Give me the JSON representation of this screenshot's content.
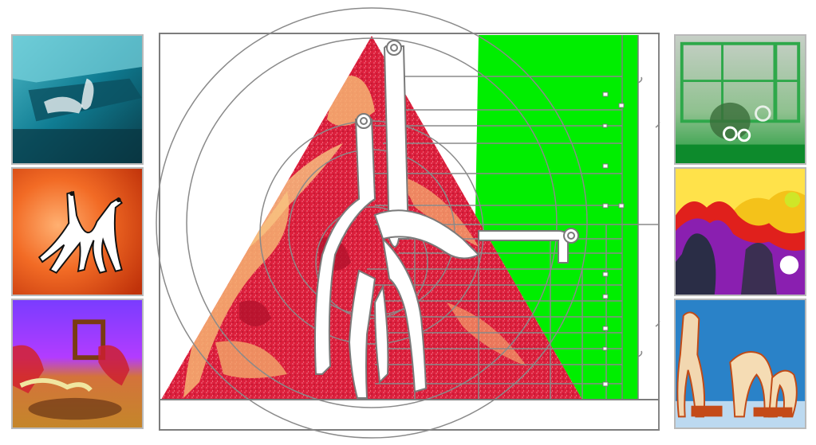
{
  "gallery": {
    "left_thumbs": [
      {
        "name": "teal-interior-figure"
      },
      {
        "name": "orange-giraffe-drawing"
      },
      {
        "name": "purple-room-scene"
      }
    ],
    "right_thumbs": [
      {
        "name": "green-window-figure"
      },
      {
        "name": "heatmap-figures"
      },
      {
        "name": "blue-cutout-figures"
      }
    ]
  },
  "palette": {
    "triangle_red": "#dc1f3c",
    "triangle_light": "#f6b472",
    "green_panel": "#00ee00",
    "line_gray": "#8a8a8a",
    "frame_gray": "#7d7d7d"
  }
}
